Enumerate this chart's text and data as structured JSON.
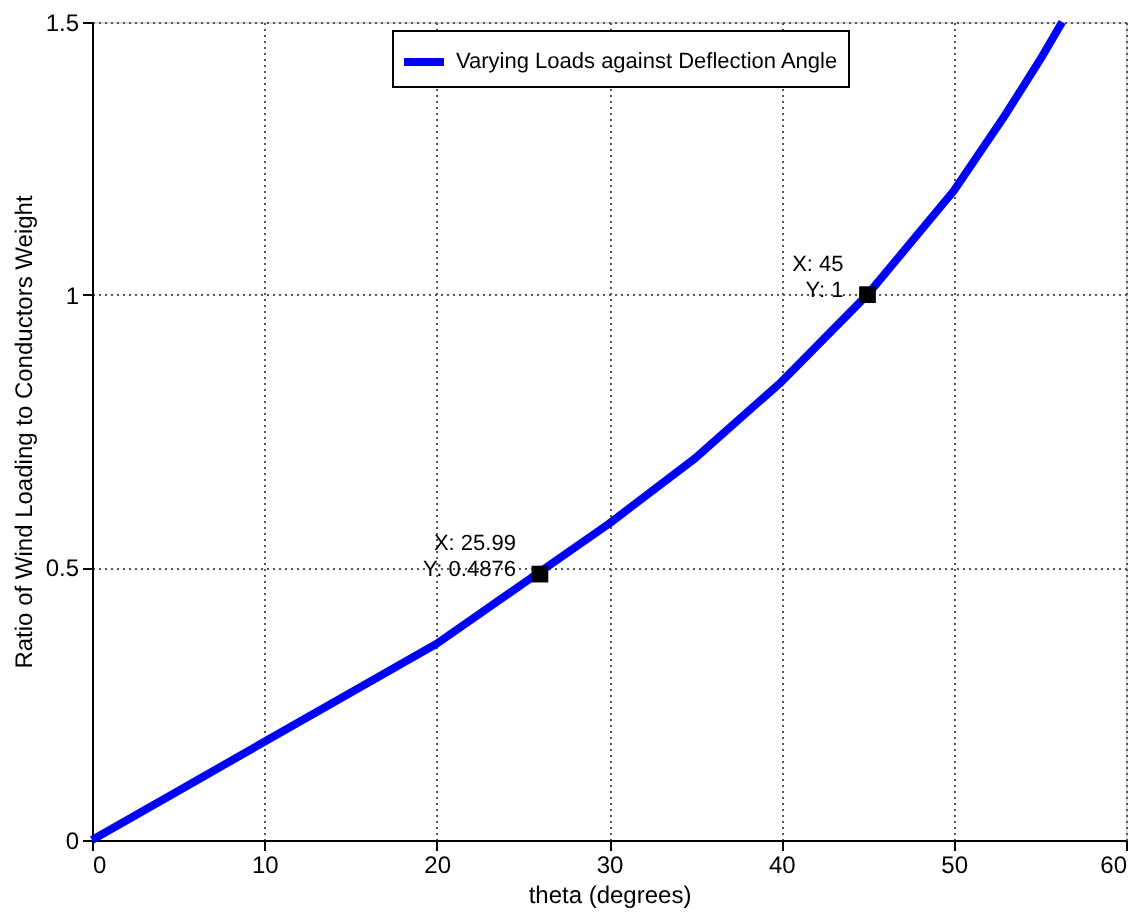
{
  "chart_data": {
    "type": "line",
    "xlabel": "theta (degrees)",
    "ylabel": "Ratio of Wind Loading to Conductors Weight",
    "x": [
      0,
      5,
      10,
      15,
      20,
      25,
      30,
      35,
      40,
      45,
      50,
      53,
      55,
      56.3
    ],
    "series": [
      {
        "name": "Varying Loads against Deflection Angle",
        "color": "#0000ff",
        "values": [
          0,
          0.09,
          0.18,
          0.27,
          0.36,
          0.47,
          0.58,
          0.7,
          0.84,
          1.0,
          1.19,
          1.33,
          1.43,
          1.5
        ]
      }
    ],
    "annotations": [
      {
        "text": "X: 25.99\nY: 0.4876",
        "x": 25.99,
        "y": 0.4876
      },
      {
        "text": "X: 45\nY: 1",
        "x": 45,
        "y": 1
      }
    ],
    "xlim": [
      0,
      60
    ],
    "xticks": [
      0,
      10,
      20,
      30,
      40,
      50,
      60
    ],
    "ylim": [
      0,
      1.5
    ],
    "yticks": [
      0,
      0.5,
      1,
      1.5
    ],
    "grid": true,
    "legend": "top right",
    "line_style": "solid",
    "marker": "none"
  }
}
